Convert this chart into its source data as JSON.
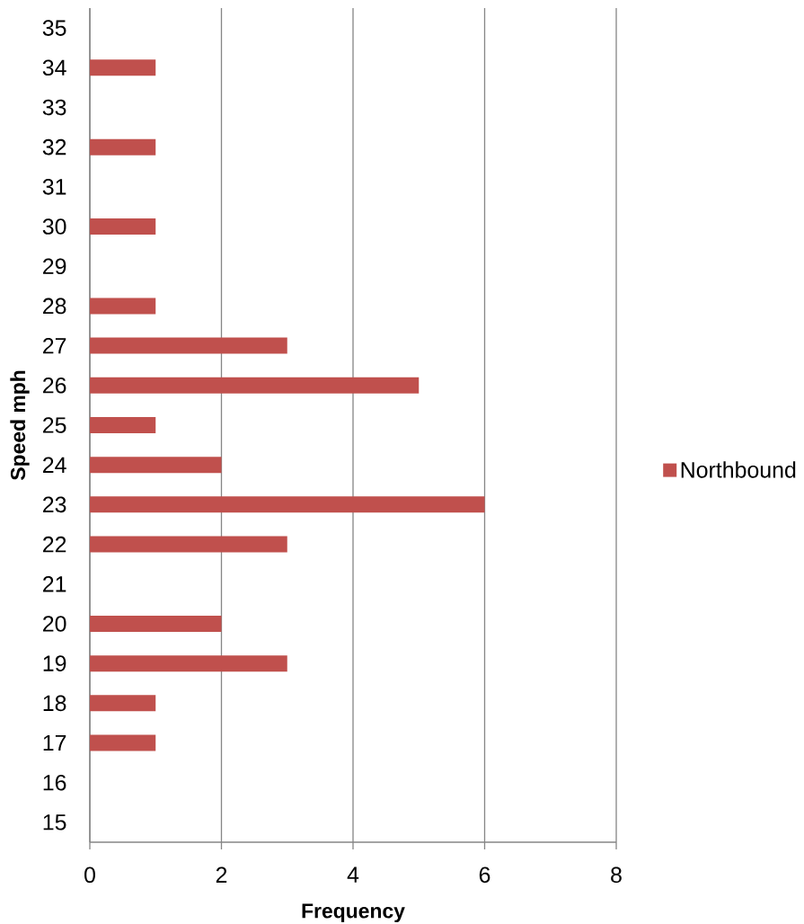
{
  "chart_data": {
    "type": "bar",
    "orientation": "horizontal",
    "xlabel": "Frequency",
    "ylabel": "Speed mph",
    "categories": [
      "35",
      "34",
      "33",
      "32",
      "31",
      "30",
      "29",
      "28",
      "27",
      "26",
      "25",
      "24",
      "23",
      "22",
      "21",
      "20",
      "19",
      "18",
      "17",
      "16",
      "15"
    ],
    "series": [
      {
        "name": "Northbound",
        "color": "#c0504d",
        "values": [
          0,
          1,
          0,
          1,
          0,
          1,
          0,
          1,
          3,
          5,
          1,
          2,
          6,
          3,
          0,
          2,
          3,
          1,
          1,
          0,
          0
        ]
      }
    ],
    "xlim": [
      0,
      8
    ],
    "xticks": [
      0,
      2,
      4,
      6,
      8
    ],
    "grid": "x",
    "legend": "right"
  }
}
